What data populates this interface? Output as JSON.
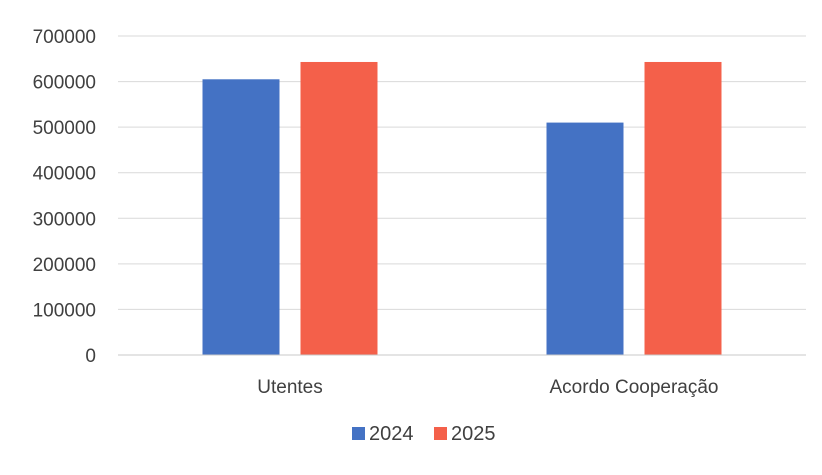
{
  "chart_data": {
    "type": "bar",
    "categories": [
      "Utentes",
      "Acordo Cooperação"
    ],
    "series": [
      {
        "name": "2024",
        "values": [
          605000,
          510000
        ],
        "color": "#4472c4"
      },
      {
        "name": "2025",
        "values": [
          643000,
          643000
        ],
        "color": "#f4604a"
      }
    ],
    "y_ticks": [
      "0",
      "100000",
      "200000",
      "300000",
      "400000",
      "500000",
      "600000",
      "700000"
    ],
    "ylim": [
      0,
      700000
    ],
    "grid": true,
    "legend": "bottom",
    "title": "",
    "xlabel": "",
    "ylabel": ""
  }
}
